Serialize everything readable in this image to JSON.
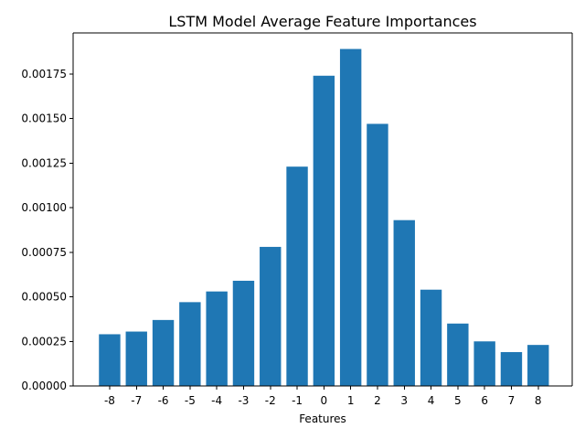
{
  "chart_data": {
    "type": "bar",
    "title": "LSTM Model Average Feature Importances",
    "xlabel": "Features",
    "ylabel": "",
    "categories": [
      "-8",
      "-7",
      "-6",
      "-5",
      "-4",
      "-3",
      "-2",
      "-1",
      "0",
      "1",
      "2",
      "3",
      "4",
      "5",
      "6",
      "7",
      "8"
    ],
    "values": [
      0.00029,
      0.000305,
      0.00037,
      0.00047,
      0.00053,
      0.00059,
      0.00078,
      0.00123,
      0.00174,
      0.00189,
      0.00147,
      0.00093,
      0.00054,
      0.00035,
      0.00025,
      0.00019,
      0.00023
    ],
    "ylim": [
      0,
      0.00198
    ],
    "yticks": [
      "0.00000",
      "0.00025",
      "0.00050",
      "0.00075",
      "0.00100",
      "0.00125",
      "0.00150",
      "0.00175"
    ],
    "ytick_values": [
      0,
      0.00025,
      0.0005,
      0.00075,
      0.001,
      0.00125,
      0.0015,
      0.00175
    ],
    "bar_color": "#1f77b4",
    "grid": false,
    "legend": "none"
  }
}
